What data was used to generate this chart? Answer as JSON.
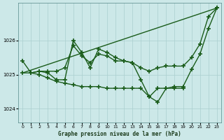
{
  "title": "Graphe pression niveau de la mer (hPa)",
  "background_color": "#cce8e8",
  "grid_color": "#aacfcf",
  "line_color": "#1a5c1a",
  "xlim": [
    -0.5,
    23.5
  ],
  "ylim": [
    1023.6,
    1027.1
  ],
  "yticks": [
    1024,
    1025,
    1026
  ],
  "xticks": [
    0,
    1,
    2,
    3,
    4,
    5,
    6,
    7,
    8,
    9,
    10,
    11,
    12,
    13,
    14,
    15,
    16,
    17,
    18,
    19,
    20,
    21,
    22,
    23
  ],
  "series": [
    {
      "x": [
        0,
        23
      ],
      "y": [
        1025.05,
        1026.95
      ],
      "marker": null,
      "linestyle": "-",
      "linewidth": 1.0
    },
    {
      "x": [
        0,
        1,
        2,
        3,
        4,
        5,
        6,
        7,
        8,
        9,
        10,
        11,
        12,
        13,
        14,
        15,
        16,
        17,
        18,
        19,
        20,
        21,
        22,
        23
      ],
      "y": [
        1025.05,
        1025.05,
        1025.1,
        1025.1,
        1025.1,
        1025.2,
        1025.85,
        1025.55,
        1025.35,
        1025.6,
        1025.55,
        1025.4,
        1025.4,
        1025.35,
        1025.2,
        1025.1,
        1025.2,
        1025.25,
        1025.25,
        1025.25,
        1025.5,
        1025.9,
        1026.7,
        1026.95
      ],
      "marker": "+",
      "linestyle": "-",
      "linewidth": 1.0
    },
    {
      "x": [
        0,
        1,
        2,
        3,
        4,
        5,
        6,
        7,
        8,
        9,
        10,
        11,
        12,
        13,
        14,
        15,
        16,
        17,
        18,
        19,
        20,
        21,
        22,
        23
      ],
      "y": [
        1025.4,
        1025.05,
        1025.1,
        1025.05,
        1024.85,
        1024.85,
        1026.0,
        1025.65,
        1025.2,
        1025.75,
        1025.65,
        1025.5,
        1025.4,
        1025.35,
        1024.85,
        1024.35,
        1024.2,
        1024.6,
        1024.65,
        1024.65,
        1025.15,
        1025.6,
        1026.35,
        1026.95
      ],
      "marker": "+",
      "linestyle": "-",
      "linewidth": 1.0
    },
    {
      "x": [
        1,
        2,
        3,
        4,
        5,
        6,
        7,
        8,
        9,
        10,
        11,
        12,
        13,
        14,
        15,
        16,
        17,
        18,
        19
      ],
      "y": [
        1025.05,
        1025.0,
        1024.9,
        1024.8,
        1024.75,
        1024.7,
        1024.65,
        1024.65,
        1024.65,
        1024.6,
        1024.6,
        1024.6,
        1024.6,
        1024.6,
        1024.35,
        1024.6,
        1024.6,
        1024.6,
        1024.6
      ],
      "marker": "+",
      "linestyle": "-",
      "linewidth": 1.0
    }
  ]
}
